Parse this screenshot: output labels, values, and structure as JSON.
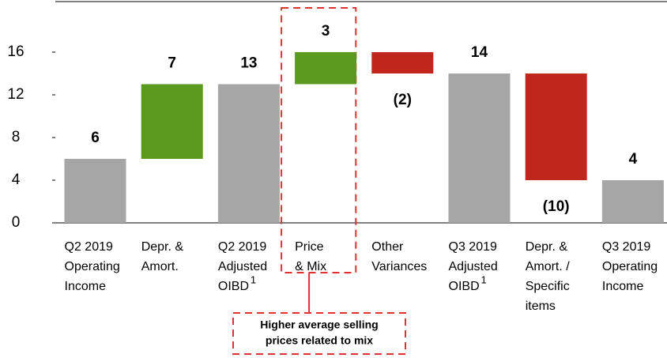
{
  "chart_data": {
    "type": "waterfall",
    "categories": [
      [
        "Q2 2019",
        "Operating",
        "Income"
      ],
      [
        "Depr. &",
        "Amort."
      ],
      [
        "Q2 2019",
        "Adjusted",
        "OIBD"
      ],
      [
        "Price",
        "& Mix"
      ],
      [
        "Other",
        "Variances"
      ],
      [
        "Q3 2019",
        "Adjusted",
        "OIBD"
      ],
      [
        "Depr. &",
        "Amort. /",
        "Specific",
        "items"
      ],
      [
        "Q3 2019",
        "Operating",
        "Income"
      ]
    ],
    "values": [
      6,
      7,
      13,
      3,
      -2,
      14,
      -10,
      4
    ],
    "value_labels": [
      "6",
      "7",
      "13",
      "3",
      "(2)",
      "14",
      "(10)",
      "4"
    ],
    "totals": [
      true,
      false,
      true,
      false,
      false,
      true,
      false,
      true
    ],
    "colors": [
      "#a6a6a6",
      "#5b9a1f",
      "#a6a6a6",
      "#5b9a1f",
      "#c0261c",
      "#a6a6a6",
      "#c0261c",
      "#a6a6a6"
    ],
    "superscripts": [
      {
        "category": 2,
        "text": "1"
      },
      {
        "category": 5,
        "text": "1"
      }
    ],
    "annotation": [
      "Higher average selling",
      "prices related to mix"
    ],
    "highlight_category": 3,
    "ylim": [
      0,
      16
    ],
    "yticks": [
      0,
      4,
      8,
      12,
      16
    ],
    "grid": false
  }
}
